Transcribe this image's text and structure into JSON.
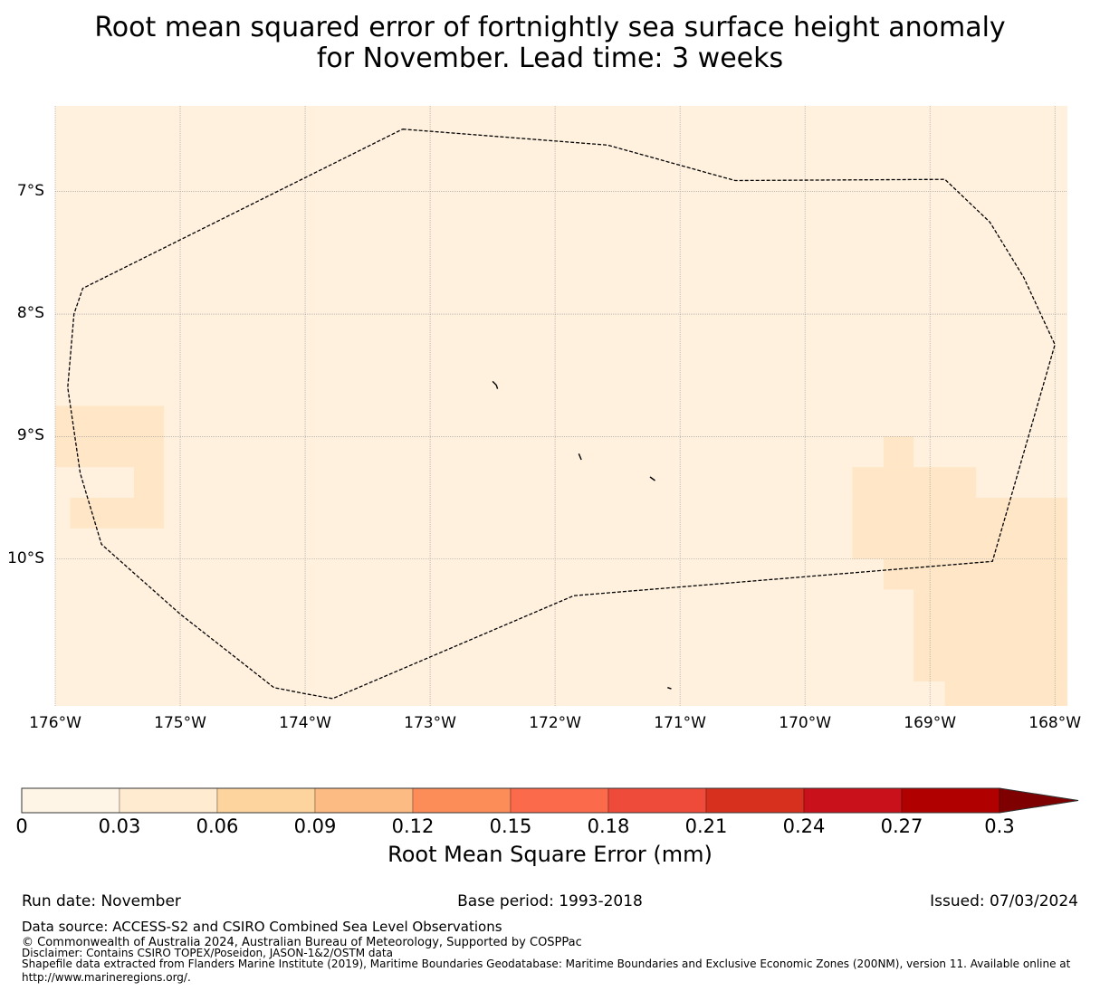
{
  "title": {
    "line1": "Root mean squared error of fortnightly sea surface height anomaly",
    "line2": "for November. Lead time: 3 weeks"
  },
  "map": {
    "lon_range": [
      -176,
      -167.9
    ],
    "lat_range": [
      -11.2,
      -6.3
    ],
    "lat_ticks": [
      {
        "value": -7,
        "label": "7°S"
      },
      {
        "value": -8,
        "label": "8°S"
      },
      {
        "value": -9,
        "label": "9°S"
      },
      {
        "value": -10,
        "label": "10°S"
      }
    ],
    "lon_ticks": [
      {
        "value": -176,
        "label": "176°W"
      },
      {
        "value": -175,
        "label": "175°W"
      },
      {
        "value": -174,
        "label": "174°W"
      },
      {
        "value": -173,
        "label": "173°W"
      },
      {
        "value": -172,
        "label": "172°W"
      },
      {
        "value": -171,
        "label": "171°W"
      },
      {
        "value": -170,
        "label": "170°W"
      },
      {
        "value": -169,
        "label": "169°W"
      },
      {
        "value": -168,
        "label": "168°W"
      }
    ],
    "background_color": "#fff1de",
    "patch_color": "#fee6c7",
    "error_patches_deg": [
      {
        "lon": [
          -176.0,
          -175.37
        ],
        "lat": [
          -8.75,
          -9.25
        ]
      },
      {
        "lon": [
          -175.37,
          -175.13
        ],
        "lat": [
          -8.75,
          -9.75
        ]
      },
      {
        "lon": [
          -175.88,
          -175.37
        ],
        "lat": [
          -9.5,
          -9.75
        ]
      },
      {
        "lon": [
          -169.37,
          -169.13
        ],
        "lat": [
          -9.0,
          -9.25
        ]
      },
      {
        "lon": [
          -169.62,
          -168.63
        ],
        "lat": [
          -9.25,
          -9.5
        ]
      },
      {
        "lon": [
          -169.62,
          -167.9
        ],
        "lat": [
          -9.5,
          -10.0
        ]
      },
      {
        "lon": [
          -169.37,
          -167.9
        ],
        "lat": [
          -10.0,
          -10.25
        ]
      },
      {
        "lon": [
          -169.13,
          -167.9
        ],
        "lat": [
          -10.25,
          -11.0
        ]
      },
      {
        "lon": [
          -168.88,
          -167.9
        ],
        "lat": [
          -11.0,
          -11.2
        ]
      }
    ],
    "eez_boundary_deg": [
      [
        -173.22,
        -6.49
      ],
      [
        -171.58,
        -6.62
      ],
      [
        -170.56,
        -6.91
      ],
      [
        -168.88,
        -6.9
      ],
      [
        -168.52,
        -7.25
      ],
      [
        -168.25,
        -7.7
      ],
      [
        -168.0,
        -8.25
      ],
      [
        -168.5,
        -10.02
      ],
      [
        -171.85,
        -10.3
      ],
      [
        -173.78,
        -11.14
      ],
      [
        -174.0,
        -11.1
      ],
      [
        -174.25,
        -11.05
      ],
      [
        -174.5,
        -10.85
      ],
      [
        -175.0,
        -10.45
      ],
      [
        -175.63,
        -9.88
      ],
      [
        -175.8,
        -9.3
      ],
      [
        -175.9,
        -8.6
      ],
      [
        -175.85,
        -8.0
      ],
      [
        -175.78,
        -7.79
      ],
      [
        -173.22,
        -6.49
      ]
    ],
    "islands_deg": [
      [
        [
          -172.5,
          -8.55
        ],
        [
          -172.47,
          -8.58
        ],
        [
          -172.46,
          -8.61
        ]
      ],
      [
        [
          -171.81,
          -9.14
        ],
        [
          -171.79,
          -9.19
        ]
      ],
      [
        [
          -171.24,
          -9.33
        ],
        [
          -171.2,
          -9.36
        ]
      ],
      [
        [
          -171.1,
          -11.05
        ],
        [
          -171.07,
          -11.06
        ]
      ]
    ]
  },
  "colorbar": {
    "title": "Root Mean Square Error (mm)",
    "bounds": [
      0,
      0.03,
      0.06,
      0.09,
      0.12,
      0.15,
      0.18,
      0.21,
      0.24,
      0.27,
      0.3
    ],
    "tick_labels": [
      "0",
      "0.03",
      "0.06",
      "0.09",
      "0.12",
      "0.15",
      "0.18",
      "0.21",
      "0.24",
      "0.27",
      "0.3"
    ],
    "colors": [
      "#fff5e6",
      "#feebd0",
      "#fdd49e",
      "#fdbb84",
      "#fc8d59",
      "#fb6a4a",
      "#ef4b3b",
      "#d7301f",
      "#c8111a",
      "#b10000",
      "#9e0000"
    ],
    "extend_color": "#7f0000"
  },
  "footer": {
    "run_date": "Run date: November",
    "base_period": "Base period: 1993-2018",
    "issued": "Issued: 07/03/2024",
    "data_source": "Data source: ACCESS-S2 and CSIRO Combined Sea Level Observations",
    "copyright": "© Commonwealth of Australia 2024, Australian Bureau of Meteorology, Supported by COSPPac",
    "disclaimer": "Disclaimer: Contains CSIRO TOPEX/Poseidon, JASON-1&2/OSTM data",
    "shapefile_1": "Shapefile data extracted from Flanders Marine Institute (2019), Maritime Boundaries Geodatabase: Maritime Boundaries and Exclusive Economic Zones (200NM), version 11. Available online at",
    "shapefile_2": "http://www.marineregions.org/."
  }
}
